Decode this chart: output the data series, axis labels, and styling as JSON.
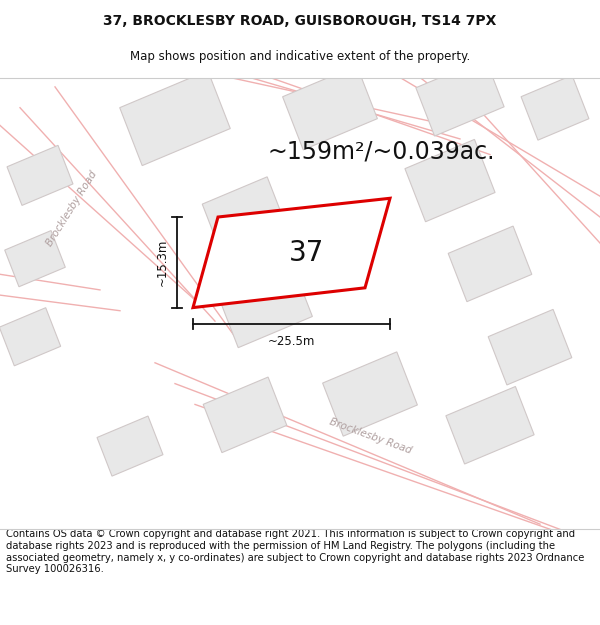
{
  "title_line1": "37, BROCKLESBY ROAD, GUISBOROUGH, TS14 7PX",
  "title_line2": "Map shows position and indicative extent of the property.",
  "area_text": "~159m²/~0.039ac.",
  "dim_width": "~25.5m",
  "dim_height": "~15.3m",
  "plot_number": "37",
  "footer_text": "Contains OS data © Crown copyright and database right 2021. This information is subject to Crown copyright and database rights 2023 and is reproduced with the permission of HM Land Registry. The polygons (including the associated geometry, namely x, y co-ordinates) are subject to Crown copyright and database rights 2023 Ordnance Survey 100026316.",
  "bg_color": "#ffffff",
  "map_bg": "#ffffff",
  "building_fill": "#e8e8e8",
  "building_edge": "#d0c8c8",
  "plot_fill": "#ffffff",
  "plot_edge": "#dd0000",
  "road_color": "#f0b0b0",
  "road_label_color": "#b0a0a0",
  "text_color": "#111111",
  "dim_color": "#111111",
  "title_fontsize": 10,
  "subtitle_fontsize": 8.5,
  "area_fontsize": 17,
  "footer_fontsize": 7.2,
  "number_fontsize": 20
}
